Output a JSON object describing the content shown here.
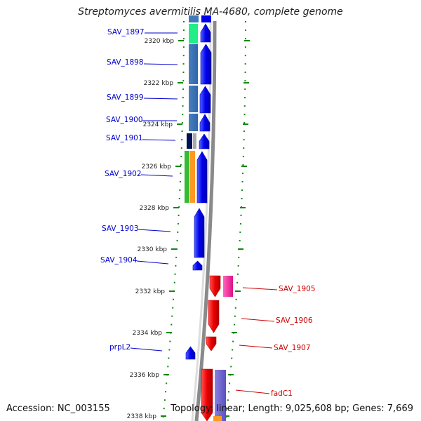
{
  "title": "Streptomyces avermitilis MA-4680, complete genome",
  "accession": "Accession: NC_003155",
  "topology": "Topology: linear; Length: 9,025,608 bp; Genes: 7,669",
  "colors": {
    "forward_gene": "#0000ee",
    "reverse_gene": "#ee0000",
    "forward_label": "#0000cc",
    "reverse_label": "#cc0000",
    "tick": "#118811",
    "backbone": "#888888"
  },
  "ticks": [
    {
      "label": "2320 kbp"
    },
    {
      "label": "2322 kbp"
    },
    {
      "label": "2324 kbp"
    },
    {
      "label": "2326 kbp"
    },
    {
      "label": "2328 kbp"
    },
    {
      "label": "2330 kbp"
    },
    {
      "label": "2332 kbp"
    },
    {
      "label": "2334 kbp"
    },
    {
      "label": "2336 kbp"
    },
    {
      "label": "2338 kbp"
    }
  ],
  "genes_forward": [
    {
      "label": "SAV_1897"
    },
    {
      "label": "SAV_1898"
    },
    {
      "label": "SAV_1899"
    },
    {
      "label": "SAV_1900"
    },
    {
      "label": "SAV_1901"
    },
    {
      "label": "SAV_1902"
    },
    {
      "label": "SAV_1903"
    },
    {
      "label": "SAV_1904"
    },
    {
      "label": "prpL2"
    }
  ],
  "genes_reverse": [
    {
      "label": "SAV_1905"
    },
    {
      "label": "SAV_1906"
    },
    {
      "label": "SAV_1907"
    },
    {
      "label": "fadC1"
    }
  ]
}
